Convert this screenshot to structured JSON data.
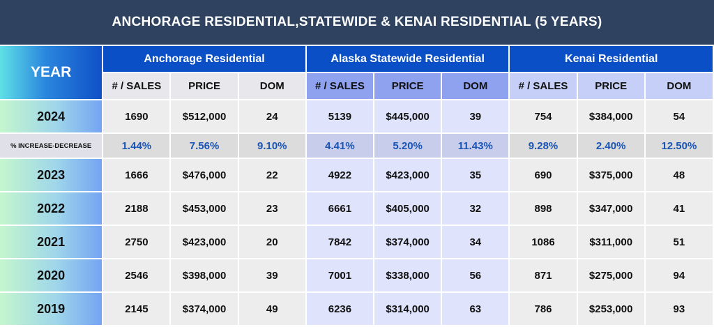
{
  "title": "ANCHORAGE RESIDENTIAL,STATEWIDE  & KENAI RESIDENTIAL (5 YEARS)",
  "year_header": "YEAR",
  "groups": [
    "Anchorage Residential",
    "Alaska Statewide Residential",
    "Kenai  Residential"
  ],
  "sub_headers": [
    "# / SALES",
    "PRICE",
    "DOM"
  ],
  "pct_label": "% INCREASE-DECREASE",
  "pct_values": [
    "1.44%",
    "7.56%",
    "9.10%",
    "4.41%",
    "5.20%",
    "11.43%",
    "9.28%",
    "2.40%",
    "12.50%"
  ],
  "rows": [
    {
      "year": "2024",
      "values": [
        "1690",
        "$512,000",
        "24",
        "5139",
        "$445,000",
        "39",
        "754",
        "$384,000",
        "54"
      ]
    },
    {
      "year": "2023",
      "values": [
        "1666",
        "$476,000",
        "22",
        "4922",
        "$423,000",
        "35",
        "690",
        "$375,000",
        "48"
      ]
    },
    {
      "year": "2022",
      "values": [
        "2188",
        "$453,000",
        "23",
        "6661",
        "$405,000",
        "32",
        "898",
        "$347,000",
        "41"
      ]
    },
    {
      "year": "2021",
      "values": [
        "2750",
        "$423,000",
        "20",
        "7842",
        "$374,000",
        "34",
        "1086",
        "$311,000",
        "51"
      ]
    },
    {
      "year": "2020",
      "values": [
        "2546",
        "$398,000",
        "39",
        "7001",
        "$338,000",
        "56",
        "871",
        "$275,000",
        "94"
      ]
    },
    {
      "year": "2019",
      "values": [
        "2145",
        "$374,000",
        "49",
        "6236",
        "$314,000",
        "63",
        "786",
        "$253,000",
        "93"
      ]
    }
  ]
}
